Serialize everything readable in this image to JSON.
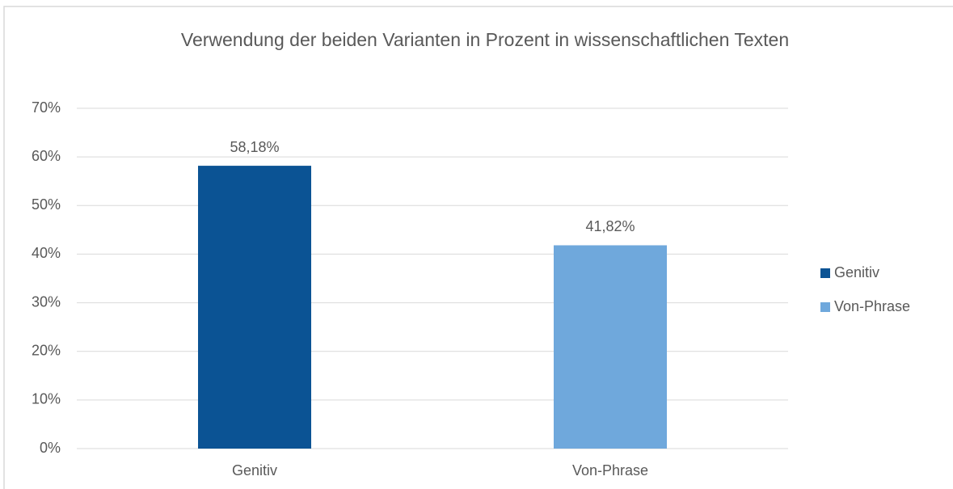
{
  "chart_data": {
    "type": "bar",
    "title": "Verwendung der beiden Varianten in Prozent in wissenschaftlichen Texten",
    "categories": [
      "Genitiv",
      "Von-Phrase"
    ],
    "series": [
      {
        "name": "Genitiv",
        "color": "#0b5394",
        "values": [
          58.18,
          null
        ],
        "value_labels": [
          "58,18%",
          null
        ]
      },
      {
        "name": "Von-Phrase",
        "color": "#6fa8dc",
        "values": [
          null,
          41.82
        ],
        "value_labels": [
          null,
          "41,82%"
        ]
      }
    ],
    "ylim": [
      0,
      70
    ],
    "yticks": [
      {
        "value": 0,
        "label": "0%"
      },
      {
        "value": 10,
        "label": "10%"
      },
      {
        "value": 20,
        "label": "20%"
      },
      {
        "value": 30,
        "label": "30%"
      },
      {
        "value": 40,
        "label": "40%"
      },
      {
        "value": 50,
        "label": "50%"
      },
      {
        "value": 60,
        "label": "60%"
      },
      {
        "value": 70,
        "label": "70%"
      }
    ],
    "grid": true,
    "legend": "right"
  }
}
